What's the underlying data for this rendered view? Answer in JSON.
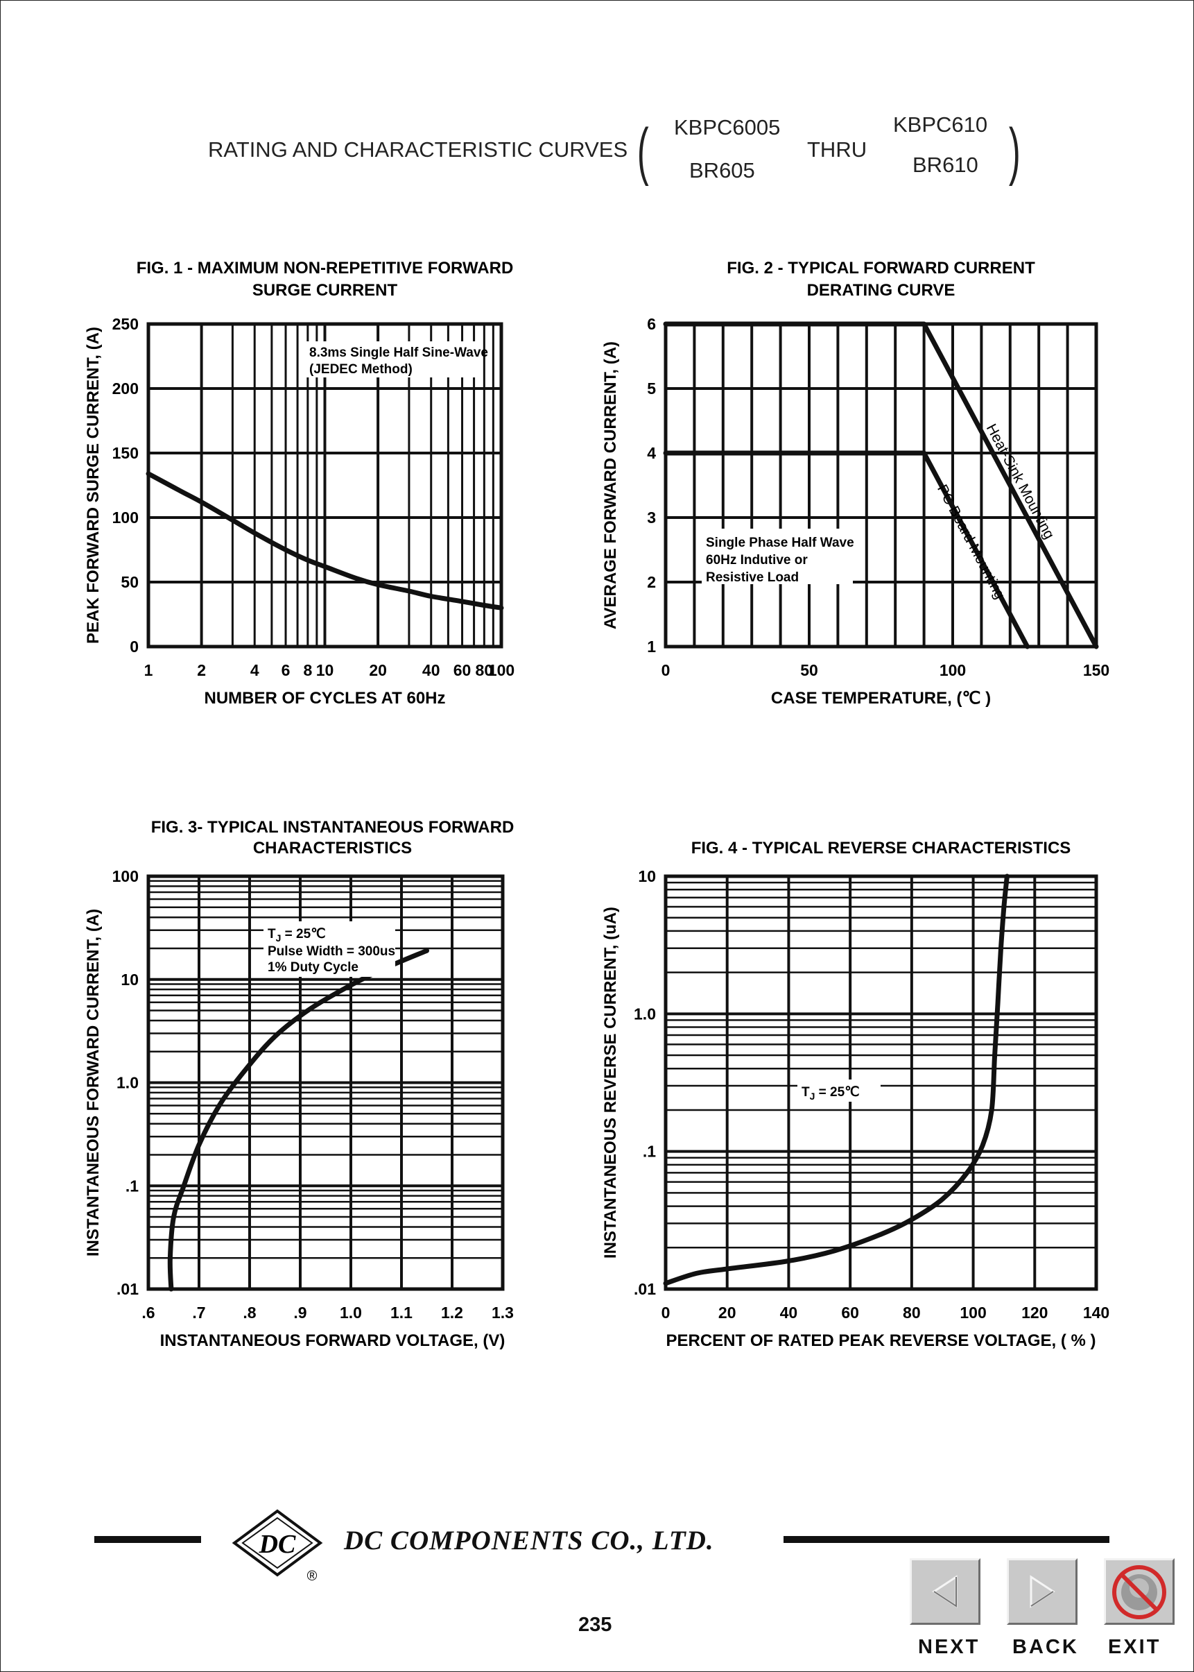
{
  "header": {
    "title": "RATING AND CHARACTERISTIC CURVES",
    "part_top_left": "KBPC6005",
    "part_bottom_left": "BR605",
    "thru": "THRU",
    "part_top_right": "KBPC610",
    "part_bottom_right": "BR610"
  },
  "footer": {
    "company": "DC COMPONENTS CO., LTD.",
    "logo_letters": "DC",
    "registered": "®",
    "page_number": "235",
    "nav": {
      "next": "NEXT",
      "back": "BACK",
      "exit": "EXIT"
    }
  },
  "chart_data": [
    {
      "type": "line",
      "title": "FIG. 1 - MAXIMUM NON-REPETITIVE FORWARD\nSURGE CURRENT",
      "xlabel": "NUMBER OF CYCLES AT 60Hz",
      "ylabel": "PEAK FORWARD SURGE CURRENT, (A)",
      "x_scale": "log",
      "xlim": [
        1,
        100
      ],
      "ylim": [
        0,
        250
      ],
      "x_ticks": [
        "1",
        "2",
        "4",
        "6",
        "8",
        "10",
        "20",
        "40",
        "60",
        "80",
        "100"
      ],
      "y_ticks": [
        "0",
        "50",
        "100",
        "150",
        "200",
        "250"
      ],
      "annotations": [
        "8.3ms Single Half Sine-Wave",
        "(JEDEC Method)"
      ],
      "grid": true,
      "series": [
        {
          "x": [
            1,
            1.5,
            2,
            3,
            4,
            6,
            8,
            10,
            15,
            20,
            30,
            40,
            60,
            80,
            100
          ],
          "y": [
            134,
            121,
            112,
            98,
            88,
            75,
            67,
            62,
            53,
            48,
            43,
            39,
            35,
            32,
            30
          ]
        }
      ]
    },
    {
      "type": "line",
      "title": "FIG. 2 - TYPICAL FORWARD CURRENT\nDERATING CURVE",
      "xlabel": "CASE TEMPERATURE, (℃ )",
      "ylabel": "AVERAGE FORWARD  CURRENT, (A)",
      "xlim": [
        0,
        150
      ],
      "ylim": [
        1,
        6
      ],
      "x_ticks": [
        "0",
        "50",
        "100",
        "150"
      ],
      "y_ticks": [
        "1",
        "2",
        "3",
        "4",
        "5",
        "6"
      ],
      "annotations": [
        "Single Phase Half Wave",
        "60Hz Indutive or",
        "Resistive Load"
      ],
      "grid": true,
      "series": [
        {
          "name": "Heat-Sink Mounting",
          "x": [
            0,
            90,
            150
          ],
          "y": [
            6,
            6,
            1
          ]
        },
        {
          "name": "PC Board Mounting",
          "x": [
            0,
            90,
            126
          ],
          "y": [
            4,
            4,
            1
          ]
        }
      ]
    },
    {
      "type": "line",
      "title": "FIG. 3- TYPICAL INSTANTANEOUS FORWARD\nCHARACTERISTICS",
      "xlabel": "INSTANTANEOUS FORWARD VOLTAGE, (V)",
      "ylabel": "INSTANTANEOUS FORWARD CURRENT, (A)",
      "y_scale": "log",
      "xlim": [
        0.6,
        1.3
      ],
      "ylim": [
        0.01,
        100
      ],
      "x_ticks": [
        ".6",
        ".7",
        ".8",
        ".9",
        "1.0",
        "1.1",
        "1.2",
        "1.3"
      ],
      "y_ticks": [
        ".01",
        ".1",
        "1.0",
        "10",
        "100"
      ],
      "annotations": [
        "T",
        "J",
        " = 25℃",
        "Pulse Width = 300us",
        "1% Duty Cycle"
      ],
      "grid": true,
      "series": [
        {
          "x": [
            0.645,
            0.643,
            0.65,
            0.67,
            0.7,
            0.74,
            0.79,
            0.85,
            0.92,
            1.0,
            1.07,
            1.15
          ],
          "y": [
            0.01,
            0.02,
            0.05,
            0.1,
            0.25,
            0.6,
            1.3,
            2.8,
            5.2,
            8.8,
            13,
            19
          ]
        }
      ]
    },
    {
      "type": "line",
      "title": "FIG. 4 - TYPICAL REVERSE CHARACTERISTICS",
      "xlabel": "PERCENT OF RATED PEAK REVERSE VOLTAGE, ( % )",
      "ylabel": "INSTANTANEOUS REVERSE CURRENT, (uA)",
      "y_scale": "log",
      "xlim": [
        0,
        140
      ],
      "ylim": [
        0.01,
        10
      ],
      "x_ticks": [
        "0",
        "20",
        "40",
        "60",
        "80",
        "100",
        "120",
        "140"
      ],
      "y_ticks": [
        ".01",
        ".1",
        "1.0",
        "10"
      ],
      "annotations": [
        "T",
        "J",
        " = 25℃"
      ],
      "grid": true,
      "series": [
        {
          "x": [
            0,
            10,
            20,
            40,
            55,
            70,
            80,
            90,
            98,
            103,
            106,
            107,
            108,
            109,
            110,
            111
          ],
          "y": [
            0.011,
            0.013,
            0.014,
            0.016,
            0.019,
            0.025,
            0.032,
            0.045,
            0.07,
            0.11,
            0.2,
            0.5,
            1.2,
            3,
            6,
            10
          ]
        }
      ]
    }
  ]
}
